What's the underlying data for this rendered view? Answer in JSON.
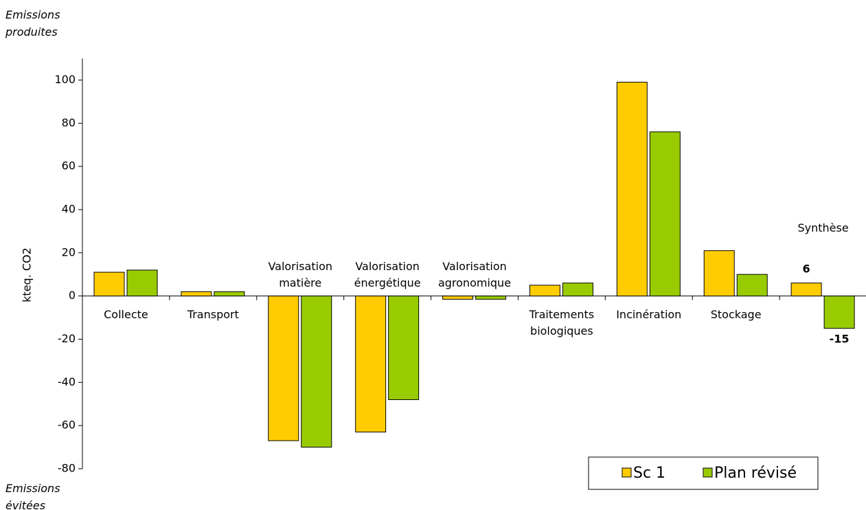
{
  "chart_data": {
    "type": "bar",
    "y_label": "kteq. CO2",
    "annotations": [
      "Emissions produites",
      "Emissions évitées"
    ],
    "categories": [
      "Collecte",
      "Transport",
      "Valorisation matière",
      "Valorisation énergétique",
      "Valorisation agronomique",
      "Traitements biologiques",
      "Incinération",
      "Stockage",
      "Synthèse"
    ],
    "series": [
      {
        "name": "Sc 1",
        "color": "#ffcc00",
        "values": [
          11,
          2,
          -67,
          -63,
          -1.5,
          5,
          99,
          21,
          6
        ],
        "value_labels": [
          null,
          null,
          null,
          null,
          null,
          null,
          null,
          null,
          "6"
        ]
      },
      {
        "name": "Plan révisé",
        "color": "#99cc00",
        "values": [
          12,
          2,
          -70,
          -48,
          -1.5,
          6,
          76,
          10,
          -15
        ],
        "value_labels": [
          null,
          null,
          null,
          null,
          null,
          null,
          null,
          null,
          "-15"
        ]
      }
    ],
    "ylim": [
      -80,
      110
    ],
    "yticks": [
      -80,
      -60,
      -40,
      -20,
      0,
      20,
      40,
      60,
      80,
      100
    ],
    "legend": "bottom-right"
  }
}
